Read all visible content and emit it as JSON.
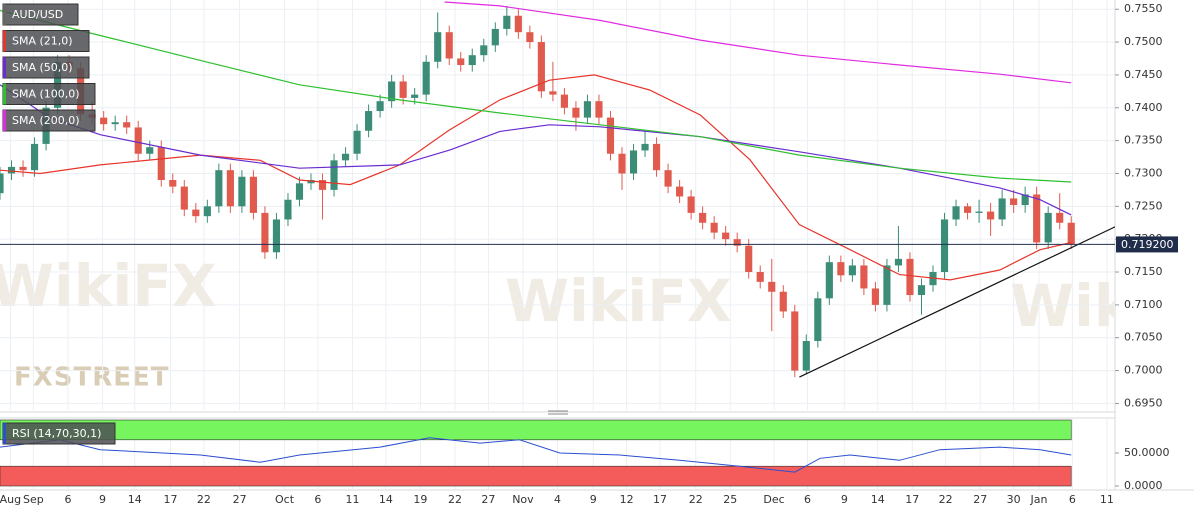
{
  "chart_data": [
    {
      "type": "candlestick",
      "name": "AUD/USD",
      "up_color": "#3b8d78",
      "down_color": "#e05a4e",
      "open": [
        0.727,
        0.73,
        0.731,
        0.7305,
        0.7345,
        0.74,
        0.747,
        0.746,
        0.739,
        0.7385,
        0.7375,
        0.7378,
        0.737,
        0.733,
        0.734,
        0.729,
        0.728,
        0.7245,
        0.7235,
        0.725,
        0.7305,
        0.725,
        0.7295,
        0.724,
        0.718,
        0.723,
        0.726,
        0.7285,
        0.729,
        0.7275,
        0.732,
        0.733,
        0.7365,
        0.7395,
        0.741,
        0.744,
        0.7415,
        0.742,
        0.747,
        0.7515,
        0.7475,
        0.7465,
        0.748,
        0.7495,
        0.752,
        0.754,
        0.7515,
        0.75,
        0.7425,
        0.742,
        0.74,
        0.7385,
        0.741,
        0.7385,
        0.733,
        0.73,
        0.7335,
        0.7345,
        0.7305,
        0.728,
        0.7265,
        0.724,
        0.7225,
        0.721,
        0.72,
        0.719,
        0.715,
        0.7135,
        0.712,
        0.709,
        0.7,
        0.7045,
        0.711,
        0.7165,
        0.7145,
        0.716,
        0.7125,
        0.71,
        0.716,
        0.717,
        0.7115,
        0.713,
        0.715,
        0.723,
        0.725,
        0.724,
        0.7242,
        0.723,
        0.7262,
        0.7252,
        0.7268,
        0.7195,
        0.724,
        0.7225
      ],
      "high": [
        0.731,
        0.732,
        0.732,
        0.7355,
        0.741,
        0.748,
        0.748,
        0.747,
        0.741,
        0.7395,
        0.7388,
        0.7388,
        0.738,
        0.735,
        0.735,
        0.73,
        0.729,
        0.7255,
        0.726,
        0.7315,
        0.7315,
        0.7305,
        0.7305,
        0.725,
        0.724,
        0.727,
        0.7295,
        0.73,
        0.73,
        0.733,
        0.734,
        0.7375,
        0.7405,
        0.742,
        0.745,
        0.745,
        0.743,
        0.748,
        0.7545,
        0.7525,
        0.7485,
        0.749,
        0.7505,
        0.753,
        0.7555,
        0.755,
        0.7525,
        0.751,
        0.747,
        0.743,
        0.741,
        0.742,
        0.742,
        0.7395,
        0.734,
        0.7345,
        0.7365,
        0.7355,
        0.7315,
        0.729,
        0.7275,
        0.725,
        0.7235,
        0.722,
        0.721,
        0.72,
        0.716,
        0.717,
        0.713,
        0.71,
        0.7055,
        0.712,
        0.7175,
        0.7175,
        0.717,
        0.717,
        0.7135,
        0.717,
        0.722,
        0.718,
        0.714,
        0.716,
        0.724,
        0.726,
        0.7255,
        0.726,
        0.7255,
        0.7275,
        0.7275,
        0.728,
        0.728,
        0.725,
        0.727,
        0.7235
      ],
      "low": [
        0.726,
        0.729,
        0.7295,
        0.7295,
        0.7335,
        0.739,
        0.745,
        0.738,
        0.7375,
        0.7365,
        0.7365,
        0.736,
        0.732,
        0.732,
        0.728,
        0.727,
        0.7235,
        0.7225,
        0.7225,
        0.724,
        0.724,
        0.724,
        0.723,
        0.717,
        0.717,
        0.722,
        0.725,
        0.7275,
        0.723,
        0.7265,
        0.731,
        0.732,
        0.7355,
        0.7385,
        0.74,
        0.7405,
        0.7405,
        0.741,
        0.746,
        0.7465,
        0.7455,
        0.7455,
        0.747,
        0.7485,
        0.751,
        0.7505,
        0.749,
        0.7415,
        0.741,
        0.739,
        0.7365,
        0.7375,
        0.7375,
        0.732,
        0.7275,
        0.729,
        0.7325,
        0.7295,
        0.727,
        0.7255,
        0.723,
        0.7215,
        0.72,
        0.719,
        0.718,
        0.714,
        0.7125,
        0.706,
        0.708,
        0.699,
        0.6995,
        0.7035,
        0.71,
        0.7135,
        0.7135,
        0.7115,
        0.709,
        0.709,
        0.715,
        0.7105,
        0.7085,
        0.712,
        0.714,
        0.722,
        0.723,
        0.7225,
        0.7205,
        0.722,
        0.724,
        0.724,
        0.7185,
        0.7185,
        0.7215,
        0.7185
      ],
      "close": [
        0.73,
        0.731,
        0.7305,
        0.7345,
        0.74,
        0.747,
        0.746,
        0.739,
        0.7385,
        0.7375,
        0.7378,
        0.737,
        0.733,
        0.734,
        0.729,
        0.728,
        0.7245,
        0.7235,
        0.725,
        0.7305,
        0.725,
        0.7295,
        0.724,
        0.718,
        0.723,
        0.726,
        0.7285,
        0.729,
        0.7275,
        0.732,
        0.733,
        0.7365,
        0.7395,
        0.741,
        0.744,
        0.7415,
        0.742,
        0.747,
        0.7515,
        0.7475,
        0.7465,
        0.748,
        0.7495,
        0.752,
        0.754,
        0.7515,
        0.75,
        0.7425,
        0.742,
        0.74,
        0.7385,
        0.741,
        0.7385,
        0.733,
        0.73,
        0.7335,
        0.7345,
        0.7305,
        0.728,
        0.7265,
        0.724,
        0.7225,
        0.721,
        0.72,
        0.719,
        0.715,
        0.7135,
        0.712,
        0.709,
        0.7,
        0.7045,
        0.711,
        0.7165,
        0.7145,
        0.716,
        0.7125,
        0.71,
        0.716,
        0.717,
        0.7115,
        0.713,
        0.715,
        0.723,
        0.725,
        0.724,
        0.7242,
        0.723,
        0.7262,
        0.7252,
        0.7268,
        0.7195,
        0.724,
        0.7225,
        0.7192
      ],
      "series": [
        {
          "name": "SMA (21,0)",
          "color": "#e8352b",
          "x": [
            0,
            3.5,
            8.7,
            17.4,
            22.6,
            26,
            30.4,
            34.7,
            39,
            43.4,
            47.7,
            51.6,
            56.4,
            60.8,
            65.1,
            69.4,
            73.8,
            78.1,
            82.5,
            86.8,
            90.3,
            93
          ],
          "values": [
            0.7305,
            0.73,
            0.7313,
            0.7328,
            0.732,
            0.729,
            0.7283,
            0.7313,
            0.7366,
            0.7412,
            0.7442,
            0.745,
            0.7427,
            0.7389,
            0.7321,
            0.7222,
            0.7184,
            0.7146,
            0.7138,
            0.7153,
            0.7184,
            0.7195
          ]
        },
        {
          "name": "SMA (50,0)",
          "color": "#6a2bd0",
          "x": [
            0,
            4.3,
            8.7,
            17.4,
            26,
            34.7,
            39.1,
            43.4,
            47.7,
            52.1,
            60.8,
            69.4,
            78.1,
            86.8,
            90.3,
            93
          ],
          "values": [
            0.7435,
            0.7385,
            0.7359,
            0.7328,
            0.7308,
            0.7313,
            0.7336,
            0.7364,
            0.7374,
            0.7371,
            0.7356,
            0.7333,
            0.7308,
            0.7278,
            0.726,
            0.7237
          ]
        },
        {
          "name": "SMA (100,0)",
          "color": "#2fc02f",
          "x": [
            0,
            8.7,
            17.4,
            26,
            34.7,
            43.4,
            52.1,
            60.8,
            69.4,
            78.1,
            86.8,
            93
          ],
          "values": [
            0.7548,
            0.751,
            0.7472,
            0.7435,
            0.7412,
            0.7392,
            0.7374,
            0.7356,
            0.7328,
            0.7308,
            0.7293,
            0.7287
          ]
        },
        {
          "name": "SMA (200,0)",
          "color": "#e02be0",
          "x": [
            38.6,
            43.4,
            52.1,
            60.8,
            69.4,
            78.1,
            86.8,
            93
          ],
          "values": [
            0.7561,
            0.7555,
            0.7533,
            0.7503,
            0.748,
            0.7465,
            0.7451,
            0.7438
          ]
        }
      ],
      "trendline": {
        "x": [
          69.4,
          97.2
        ],
        "values": [
          0.699,
          0.7222
        ]
      },
      "last_price": {
        "value": 0.7192,
        "label": "0.719200"
      },
      "xlim": [
        0,
        96.8
      ],
      "ylim": [
        0.694,
        0.7564
      ],
      "yticks": [
        {
          "value": 0.695,
          "label": "0.6950"
        },
        {
          "value": 0.7,
          "label": "0.7000"
        },
        {
          "value": 0.705,
          "label": "0.7050"
        },
        {
          "value": 0.71,
          "label": "0.7100"
        },
        {
          "value": 0.715,
          "label": "0.7150"
        },
        {
          "value": 0.72,
          "label": "0.7200"
        },
        {
          "value": 0.725,
          "label": "0.7250"
        },
        {
          "value": 0.73,
          "label": "0.7300"
        },
        {
          "value": 0.735,
          "label": "0.7350"
        },
        {
          "value": 0.74,
          "label": "0.7400"
        },
        {
          "value": 0.745,
          "label": "0.7450"
        },
        {
          "value": 0.75,
          "label": "0.7500"
        },
        {
          "value": 0.755,
          "label": "0.7550"
        }
      ],
      "xticks": [
        {
          "value": 0.9,
          "label": "Aug"
        },
        {
          "value": 2.9,
          "label": "Sep"
        },
        {
          "value": 5.9,
          "label": "6"
        },
        {
          "value": 8.9,
          "label": "9"
        },
        {
          "value": 11.7,
          "label": "14"
        },
        {
          "value": 14.8,
          "label": "17"
        },
        {
          "value": 17.7,
          "label": "22"
        },
        {
          "value": 20.8,
          "label": "27"
        },
        {
          "value": 24.7,
          "label": "Oct"
        },
        {
          "value": 27.6,
          "label": "6"
        },
        {
          "value": 30.6,
          "label": "11"
        },
        {
          "value": 33.5,
          "label": "14"
        },
        {
          "value": 36.5,
          "label": "19"
        },
        {
          "value": 39.5,
          "label": "22"
        },
        {
          "value": 42.4,
          "label": "27"
        },
        {
          "value": 45.4,
          "label": "Nov"
        },
        {
          "value": 48.4,
          "label": "4"
        },
        {
          "value": 51.5,
          "label": "9"
        },
        {
          "value": 54.4,
          "label": "12"
        },
        {
          "value": 57.3,
          "label": "17"
        },
        {
          "value": 60.4,
          "label": "22"
        },
        {
          "value": 63.4,
          "label": "25"
        },
        {
          "value": 67.2,
          "label": "Dec"
        },
        {
          "value": 70.1,
          "label": "6"
        },
        {
          "value": 73.3,
          "label": "9"
        },
        {
          "value": 76.2,
          "label": "14"
        },
        {
          "value": 79.2,
          "label": "17"
        },
        {
          "value": 82.1,
          "label": "22"
        },
        {
          "value": 85.1,
          "label": "27"
        },
        {
          "value": 88,
          "label": "30"
        },
        {
          "value": 90.2,
          "label": "Jan"
        },
        {
          "value": 93.1,
          "label": "6"
        },
        {
          "value": 96.1,
          "label": "11"
        }
      ],
      "grid": true,
      "watermark": "WikiFX",
      "logo": "FXSTREET"
    },
    {
      "type": "line",
      "title": "RSI (14,70,30,1)",
      "color": "#2b4fd0",
      "x": [
        0,
        5.2,
        8.7,
        17.4,
        22.6,
        26,
        33,
        37.3,
        41.7,
        45.1,
        48.6,
        53.8,
        59,
        64.2,
        69,
        71.2,
        73.8,
        78.1,
        81.6,
        86.8,
        90.3,
        93
      ],
      "values": [
        59,
        70,
        55,
        47,
        36,
        47,
        59,
        73,
        65,
        70,
        50,
        47,
        39,
        30,
        21,
        42,
        47,
        39,
        55,
        59,
        55,
        47
      ],
      "xlim": [
        0,
        96.8
      ],
      "ylim": [
        0,
        100
      ],
      "overbought": 70,
      "oversold": 30,
      "overbought_color": "#76f55e",
      "oversold_color": "#f45b5b",
      "yticks": [
        {
          "value": 50,
          "label": "50.0000"
        },
        {
          "value": 0,
          "label": "0.0000"
        }
      ]
    }
  ]
}
